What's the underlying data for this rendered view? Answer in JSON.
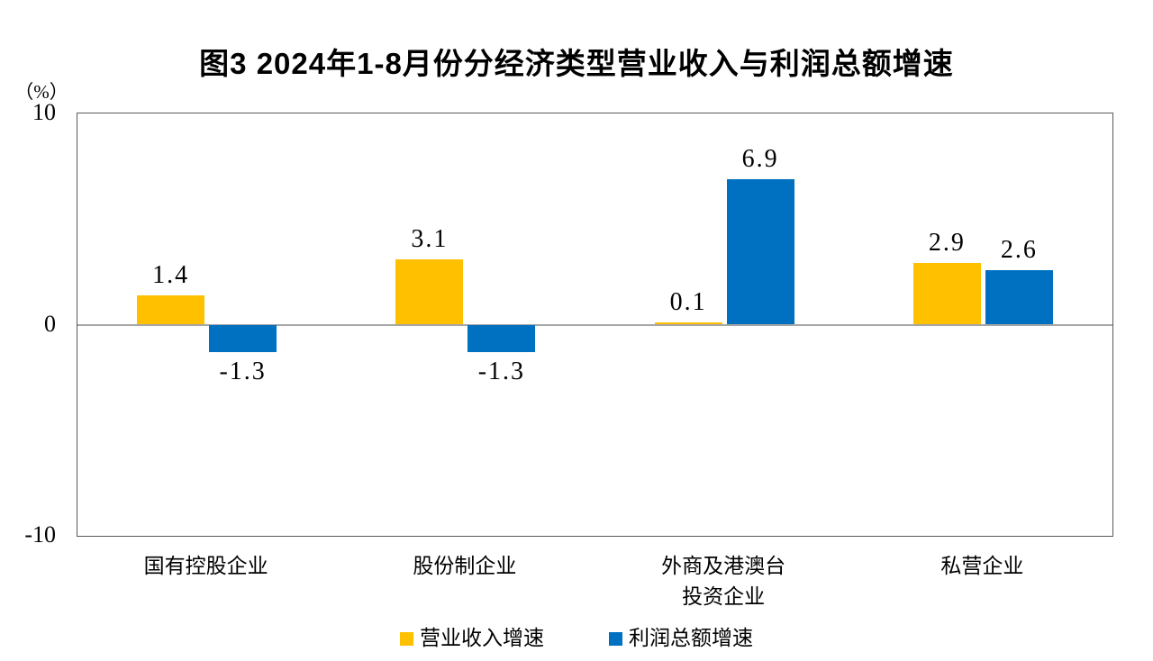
{
  "header": {
    "title": "图3 2024年1-8月份分经济类型营业收入与利润总额增速"
  },
  "chart_data": {
    "type": "bar",
    "title": "图3 2024年1-8月份分经济类型营业收入与利润总额增速",
    "unit_label": "（%）",
    "categories": [
      "国有控股企业",
      "股份制企业",
      "外商及港澳台\n投资企业",
      "私营企业"
    ],
    "series": [
      {
        "name": "营业收入增速",
        "color": "#FFC000",
        "values": [
          1.4,
          3.1,
          0.1,
          2.9
        ],
        "labels": [
          "1.4",
          "3.1",
          "0.1",
          "2.9"
        ]
      },
      {
        "name": "利润总额增速",
        "color": "#0070C0",
        "values": [
          -1.3,
          -1.3,
          6.9,
          2.6
        ],
        "labels": [
          "-1.3",
          "-1.3",
          "6.9",
          "2.6"
        ]
      }
    ],
    "ylim": [
      -10,
      10
    ],
    "y_ticks": [
      10,
      0,
      -10
    ],
    "grid": false,
    "legend_position": "bottom",
    "zero_line_color": "#A6A6A6",
    "axis_border_color": "#595959"
  }
}
